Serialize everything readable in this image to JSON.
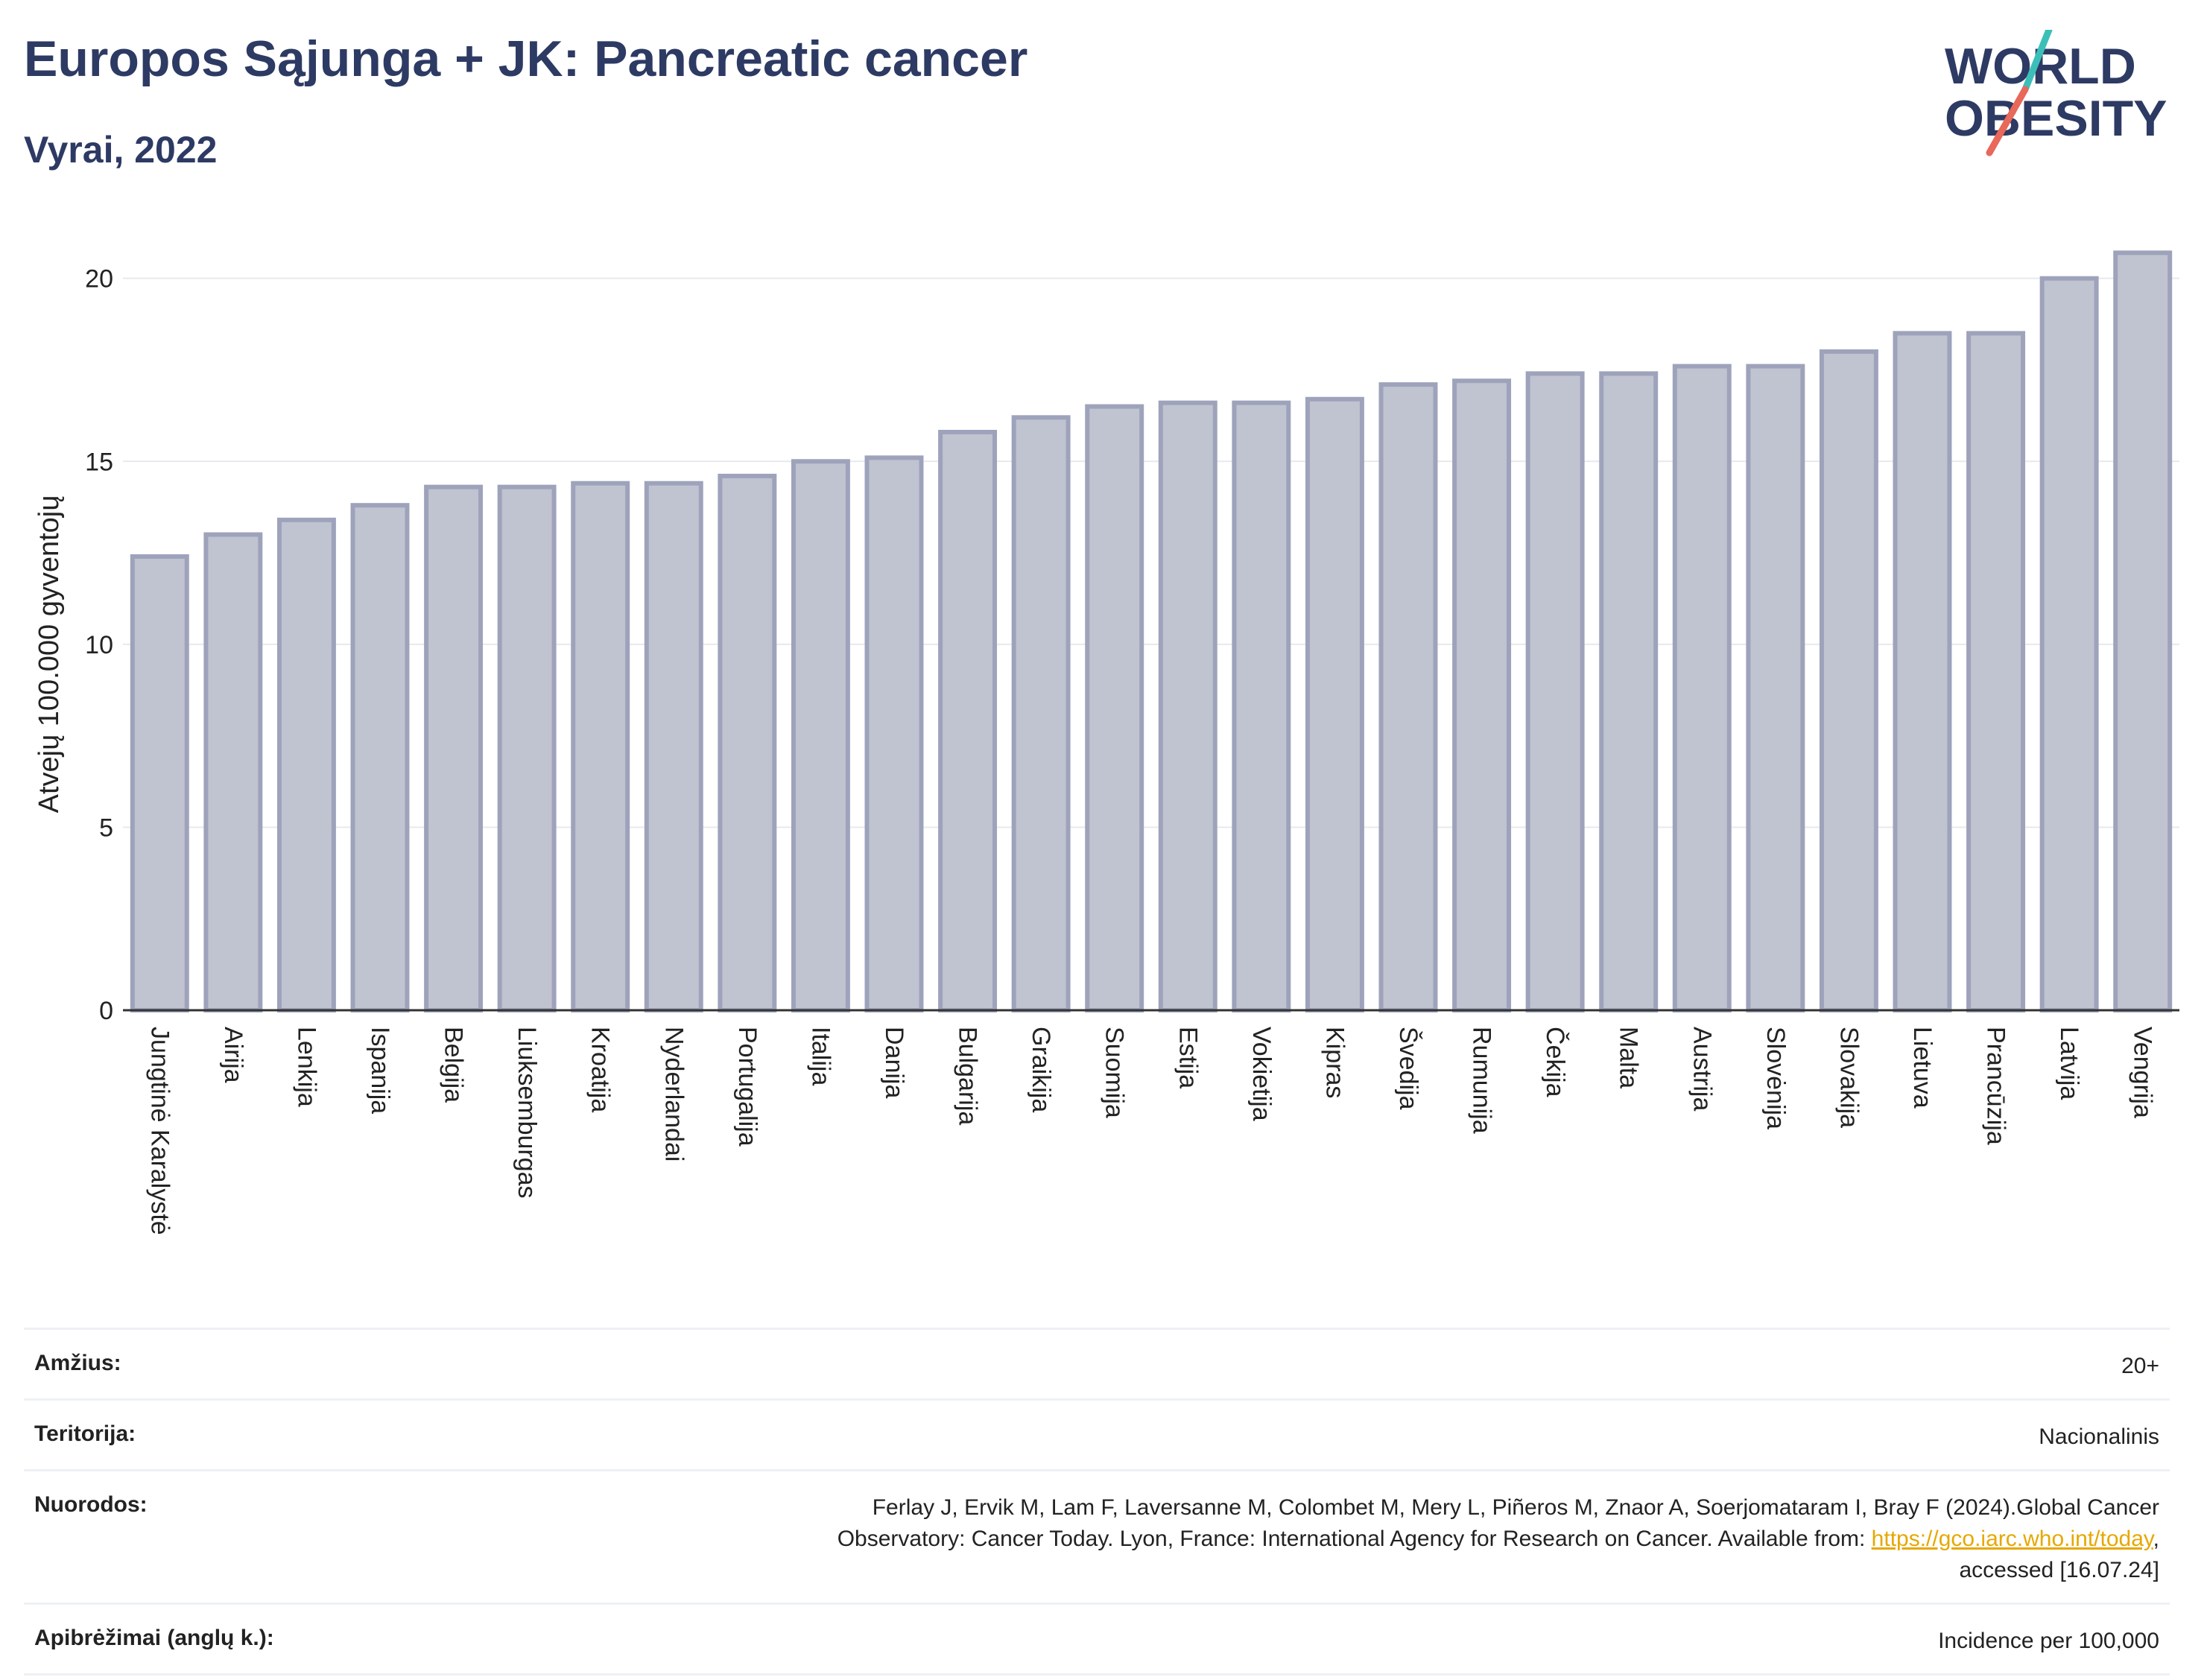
{
  "header": {
    "title": "Europos Sąjunga + JK: Pancreatic cancer",
    "subtitle": "Vyrai, 2022",
    "logo_line1": "WORLD",
    "logo_line2": "OBESITY"
  },
  "colors": {
    "title": "#2d3a63",
    "bar_fill": "#c0c3d0",
    "bar_stroke": "#9ea3bb",
    "grid": "#e8e9ee",
    "logo_teal": "#3cbfb8",
    "logo_coral": "#e8685a",
    "link": "#e6a800"
  },
  "chart_data": {
    "type": "bar",
    "ylabel": "Atvejų 100.000 gyventojų",
    "xlabel": "",
    "ylim": [
      0,
      21.5
    ],
    "yticks": [
      0,
      5,
      10,
      15,
      20
    ],
    "grid": true,
    "categories": [
      "Jungtinė Karalystė",
      "Airija",
      "Lenkija",
      "Ispanija",
      "Belgija",
      "Liuksemburgas",
      "Kroatija",
      "Nyderlandai",
      "Portugalija",
      "Italija",
      "Danija",
      "Bulgarija",
      "Graikija",
      "Suomija",
      "Estija",
      "Vokietija",
      "Kipras",
      "Švedija",
      "Rumunija",
      "Čekija",
      "Malta",
      "Austrija",
      "Slovėnija",
      "Slovakija",
      "Lietuva",
      "Prancūzija",
      "Latvija",
      "Vengrija"
    ],
    "values": [
      12.4,
      13.0,
      13.4,
      13.8,
      14.3,
      14.3,
      14.4,
      14.4,
      14.6,
      15.0,
      15.1,
      15.8,
      16.2,
      16.5,
      16.6,
      16.6,
      16.7,
      17.1,
      17.2,
      17.4,
      17.4,
      17.6,
      17.6,
      18.0,
      18.5,
      18.5,
      20.0,
      20.7
    ]
  },
  "info": {
    "age_label": "Amžius:",
    "age_value": "20+",
    "territory_label": "Teritorija:",
    "territory_value": "Nacionalinis",
    "refs_label": "Nuorodos:",
    "refs_line1": "Ferlay J, Ervik M, Lam F, Laversanne M, Colombet M, Mery L, Piñeros M, Znaor A, Soerjomataram I, Bray F (2024).Global Cancer",
    "refs_line2_pre": "Observatory: Cancer Today. Lyon, France: International Agency for Research on Cancer. Available from: ",
    "refs_link": "https://gco.iarc.who.int/today",
    "refs_line2_post": ",",
    "refs_line3": "accessed [16.07.24]",
    "defs_label": "Apibrėžimai (anglų k.):",
    "defs_value": "Incidence per 100,000"
  }
}
